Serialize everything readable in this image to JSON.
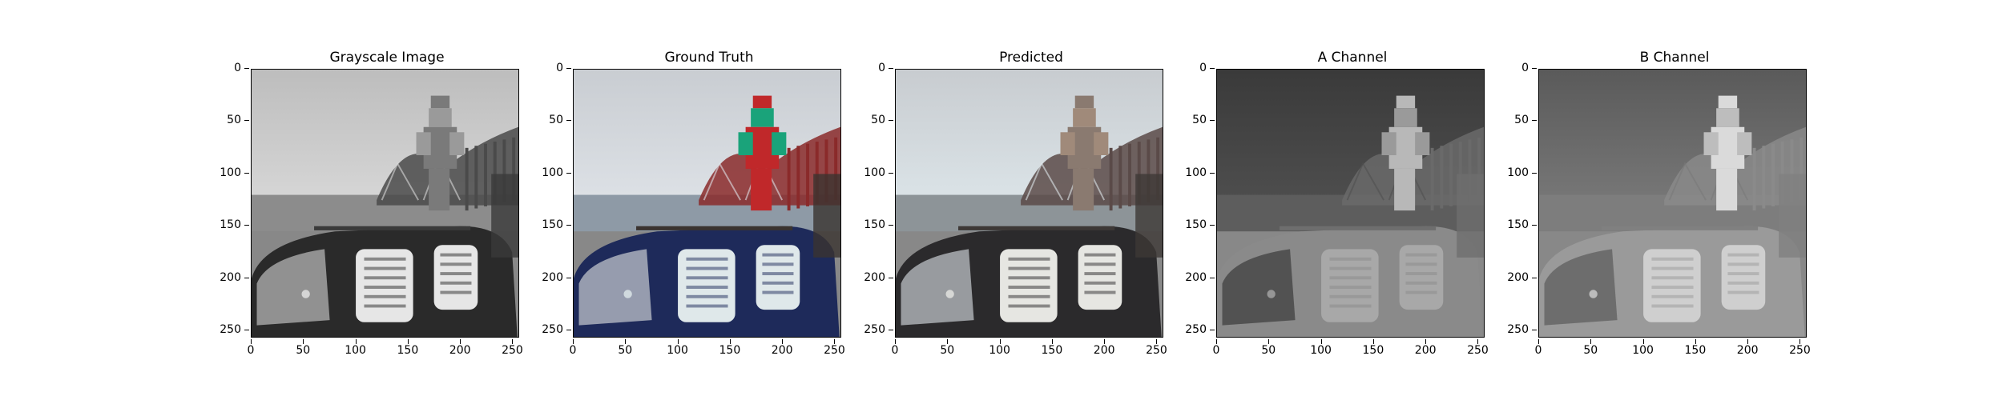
{
  "figure": {
    "panels": [
      {
        "title": "Grayscale Image",
        "mode": "gray"
      },
      {
        "title": "Ground Truth",
        "mode": "color"
      },
      {
        "title": "Predicted",
        "mode": "pred"
      },
      {
        "title": "A Channel",
        "mode": "a"
      },
      {
        "title": "B Channel",
        "mode": "b"
      }
    ],
    "y_ticks": [
      "0",
      "50",
      "100",
      "150",
      "200",
      "250"
    ],
    "x_ticks": [
      "0",
      "50",
      "100",
      "150",
      "200",
      "250"
    ],
    "axis_range": {
      "x": [
        0,
        255
      ],
      "y": [
        0,
        255
      ]
    }
  }
}
